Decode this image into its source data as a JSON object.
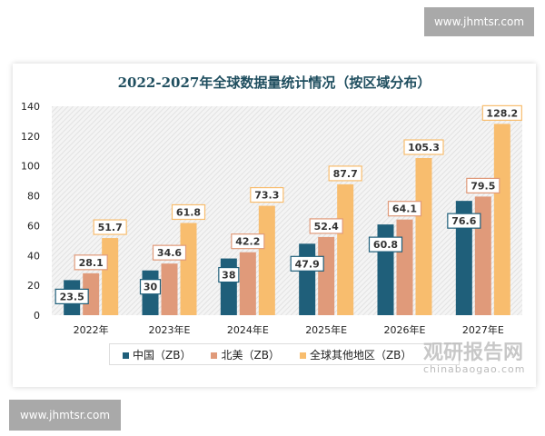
{
  "watermark_top": "www.jhmtsr.com",
  "watermark_bottom": "www.jhmtsr.com",
  "brand": {
    "name": "观研报告网",
    "url": "chinabaogao.com"
  },
  "chart_data": {
    "type": "bar",
    "title": "2022-2027年全球数据量统计情况（按区域分布）",
    "categories": [
      "2022年",
      "2023年E",
      "2024年E",
      "2025年E",
      "2026年E",
      "2027年E"
    ],
    "series": [
      {
        "name": "中国（ZB）",
        "color": "#1f5f7a",
        "values": [
          23.5,
          30,
          38,
          47.9,
          60.8,
          76.6
        ]
      },
      {
        "name": "北美（ZB）",
        "color": "#e09a7a",
        "values": [
          28.1,
          34.6,
          42.2,
          52.4,
          64.1,
          79.5
        ]
      },
      {
        "name": "全球其他地区（ZB）",
        "color": "#f8bd6e",
        "values": [
          51.7,
          61.8,
          73.3,
          87.7,
          105.3,
          128.2
        ]
      }
    ],
    "yticks": [
      0,
      20,
      40,
      60,
      80,
      100,
      120,
      140
    ],
    "ylim": [
      0,
      140
    ],
    "grid": false,
    "legend": "bottom",
    "data_labels": true
  }
}
